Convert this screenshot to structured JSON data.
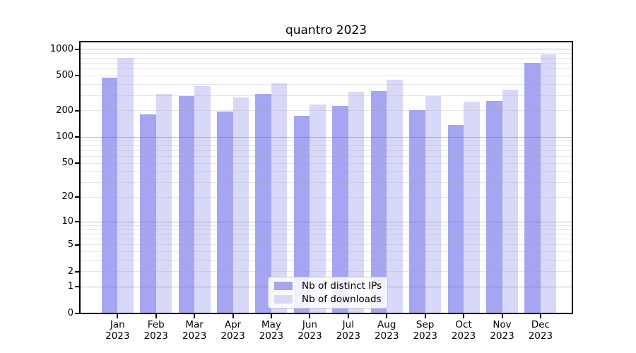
{
  "chart_data": {
    "type": "bar",
    "title": "quantro 2023",
    "categories": [
      "Jan",
      "Feb",
      "Mar",
      "Apr",
      "May",
      "Jun",
      "Jul",
      "Aug",
      "Sep",
      "Oct",
      "Nov",
      "Dec"
    ],
    "year_label": "2023",
    "series": [
      {
        "name": "Nb of distinct IPs",
        "color": "#a5a5f2",
        "values": [
          480,
          182,
          295,
          196,
          314,
          175,
          228,
          336,
          204,
          138,
          258,
          700
        ]
      },
      {
        "name": "Nb of downloads",
        "color": "#d8d8f8",
        "values": [
          800,
          310,
          382,
          283,
          414,
          238,
          330,
          455,
          292,
          255,
          351,
          875
        ]
      }
    ],
    "xlabel": "",
    "ylabel": "",
    "y_scale": "log10(value+1)",
    "y_ticks": [
      0,
      1,
      2,
      5,
      10,
      20,
      50,
      100,
      200,
      500,
      1000
    ],
    "ylim": [
      0,
      1225
    ],
    "grid": "horizontal, major lines at powers of 10, faint minor lines at 2-9 multiples",
    "legend_position": "inside bottom-center"
  }
}
